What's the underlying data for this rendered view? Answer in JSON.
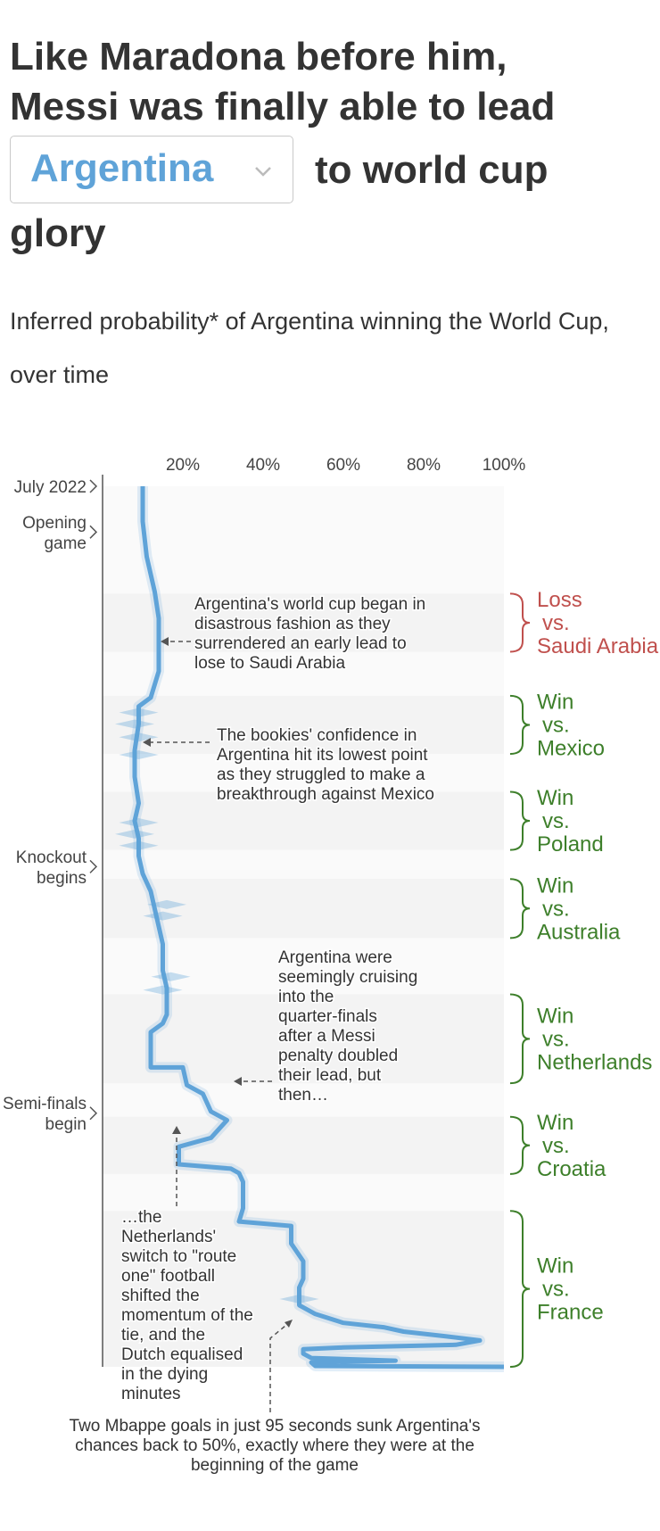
{
  "header": {
    "title_line1": "Like Maradona before him,",
    "title_line2": "Messi was finally able to lead",
    "title_after_select": "to world cup",
    "title_line4": "glory",
    "team_select_value": "Argentina",
    "subtitle": "Inferred probability* of Argentina winning the World Cup, over time"
  },
  "colors": {
    "line": "#5fa3d8",
    "loss": "#c0504d",
    "win": "#3d7f2a",
    "band": "#f3f3f3",
    "plot_bg": "#fafafa"
  },
  "chart_data": {
    "type": "line",
    "orientation": "vertical",
    "x_axis": {
      "min": 0,
      "max": 100,
      "ticks": [
        "20%",
        "40%",
        "60%",
        "80%",
        "100%"
      ],
      "position": "top"
    },
    "y_axis_labels": [
      "July 2022",
      "Opening game",
      "Knockout begins",
      "Semi-finals begin"
    ],
    "matches": [
      {
        "result": "Loss",
        "vs": "vs.",
        "opponent": "Saudi Arabia",
        "outcome": "loss"
      },
      {
        "result": "Win",
        "vs": "vs.",
        "opponent": "Mexico",
        "outcome": "win"
      },
      {
        "result": "Win",
        "vs": "vs.",
        "opponent": "Poland",
        "outcome": "win"
      },
      {
        "result": "Win",
        "vs": "vs.",
        "opponent": "Australia",
        "outcome": "win"
      },
      {
        "result": "Win",
        "vs": "vs.",
        "opponent": "Netherlands",
        "outcome": "win"
      },
      {
        "result": "Win",
        "vs": "vs.",
        "opponent": "Croatia",
        "outcome": "win"
      },
      {
        "result": "Win",
        "vs": "vs.",
        "opponent": "France",
        "outcome": "win"
      }
    ],
    "series": [
      {
        "values": [
          {
            "p": 10,
            "t": 0
          },
          {
            "p": 10,
            "t": 4
          },
          {
            "p": 11,
            "t": 8
          },
          {
            "p": 13,
            "t": 12
          },
          {
            "p": 14,
            "t": 15
          },
          {
            "p": 14,
            "t": 17.5
          },
          {
            "p": 14,
            "t": 21
          },
          {
            "p": 12,
            "t": 24
          },
          {
            "p": 9,
            "t": 25
          },
          {
            "p": 9,
            "t": 27
          },
          {
            "p": 8,
            "t": 30
          },
          {
            "p": 8,
            "t": 33
          },
          {
            "p": 9,
            "t": 36
          },
          {
            "p": 8,
            "t": 38
          },
          {
            "p": 9,
            "t": 40
          },
          {
            "p": 9,
            "t": 42
          },
          {
            "p": 10,
            "t": 44
          },
          {
            "p": 12,
            "t": 46
          },
          {
            "p": 13,
            "t": 48
          },
          {
            "p": 14,
            "t": 50
          },
          {
            "p": 15,
            "t": 52
          },
          {
            "p": 15,
            "t": 55
          },
          {
            "p": 16,
            "t": 57
          },
          {
            "p": 16,
            "t": 60
          },
          {
            "p": 15,
            "t": 61
          },
          {
            "p": 12,
            "t": 62
          },
          {
            "p": 12,
            "t": 66
          },
          {
            "p": 20,
            "t": 66
          },
          {
            "p": 21,
            "t": 68
          },
          {
            "p": 25,
            "t": 69
          },
          {
            "p": 27,
            "t": 71
          },
          {
            "p": 31,
            "t": 72
          },
          {
            "p": 27,
            "t": 74
          },
          {
            "p": 19,
            "t": 75
          },
          {
            "p": 19,
            "t": 77
          },
          {
            "p": 32,
            "t": 77.5
          },
          {
            "p": 34,
            "t": 78
          },
          {
            "p": 35,
            "t": 79
          },
          {
            "p": 35,
            "t": 82
          },
          {
            "p": 34,
            "t": 83.5
          },
          {
            "p": 47,
            "t": 84
          },
          {
            "p": 47,
            "t": 86
          },
          {
            "p": 50,
            "t": 88
          },
          {
            "p": 50,
            "t": 90
          },
          {
            "p": 49,
            "t": 91
          },
          {
            "p": 49,
            "t": 93
          },
          {
            "p": 53,
            "t": 94
          },
          {
            "p": 60,
            "t": 95
          },
          {
            "p": 70,
            "t": 95.5
          },
          {
            "p": 75,
            "t": 96
          },
          {
            "p": 85,
            "t": 96.5
          },
          {
            "p": 94,
            "t": 97
          },
          {
            "p": 88,
            "t": 97.5
          },
          {
            "p": 60,
            "t": 97.8
          },
          {
            "p": 50,
            "t": 98
          },
          {
            "p": 50,
            "t": 98.5
          },
          {
            "p": 52,
            "t": 99
          },
          {
            "p": 73,
            "t": 99.3
          },
          {
            "p": 52,
            "t": 99.5
          },
          {
            "p": 53,
            "t": 99.9
          },
          {
            "p": 100,
            "t": 100
          }
        ]
      }
    ],
    "annotations": [
      "Argentina's world cup began in disastrous fashion as they surrendered an early lead to lose to Saudi Arabia",
      "The bookies' confidence in Argentina hit its lowest point as they struggled to make a breakthrough against Mexico",
      "Argentina were seemingly cruising into the quarter-finals after a Messi penalty doubled their lead, but then…",
      "…the Netherlands' switch to \"route one\" football shifted the momentum of the tie, and the Dutch equalised in the dying minutes",
      "Two Mbappe goals in just 95 seconds sunk Argentina's chances back to 50%, exactly where they were at the beginning of the game"
    ]
  }
}
